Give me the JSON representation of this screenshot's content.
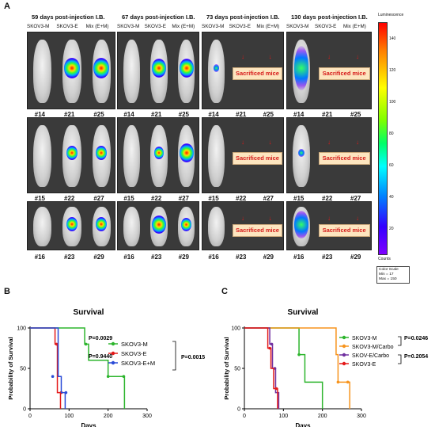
{
  "panel_letters": {
    "a": "A",
    "b": "B",
    "c": "C"
  },
  "groups": [
    {
      "title": "59 days post-injection I.B.",
      "cols": [
        "SKOV3-M",
        "SKOV3-E",
        "Mix (E+M)"
      ]
    },
    {
      "title": "67 days post-injection I.B.",
      "cols": [
        "SKOV3-M",
        "SKOV3-E",
        "Mix (E+M)"
      ]
    },
    {
      "title": "73 days post-injection I.B.",
      "cols": [
        "SKOV3-M",
        "SKOV3-E",
        "Mix (E+M)"
      ]
    },
    {
      "title": "130 days post-injection I.B.",
      "cols": [
        "SKOV3-M",
        "SKOV3-E",
        "Mix (E+M)"
      ]
    }
  ],
  "mouse_ids": [
    [
      "#14",
      "#21",
      "#25"
    ],
    [
      "#15",
      "#22",
      "#27"
    ],
    [
      "#16",
      "#23",
      "#29"
    ]
  ],
  "sacrificed_label": "Sacrificed mice",
  "colorbar": {
    "title": "Luminescence",
    "ticks": [
      "140",
      "120",
      "100",
      "80",
      "60",
      "40",
      "20"
    ],
    "bottom_label": "Counts",
    "scale_lines": [
      "Color Scale",
      "Min = 17",
      "Max = 150"
    ]
  },
  "chart_data": [
    {
      "type": "line",
      "panel": "B",
      "title": "Survival",
      "xlabel": "Days",
      "ylabel": "Probability of Survival",
      "xlim": [
        0,
        300
      ],
      "ylim": [
        0,
        100
      ],
      "xticks": [
        "0",
        "100",
        "200",
        "300"
      ],
      "yticks": [
        "0",
        "50",
        "100"
      ],
      "series": [
        {
          "name": "SKOV3-M",
          "color": "#2db52d",
          "steps": [
            [
              0,
              100
            ],
            [
              140,
              100
            ],
            [
              140,
              80
            ],
            [
              150,
              80
            ],
            [
              150,
              60
            ],
            [
              200,
              60
            ],
            [
              200,
              40
            ],
            [
              242,
              40
            ],
            [
              242,
              0
            ]
          ],
          "censor": [
            [
              143,
              80
            ],
            [
              200,
              40
            ],
            [
              240,
              40
            ]
          ]
        },
        {
          "name": "SKOV3-E",
          "color": "#e41a1a",
          "steps": [
            [
              0,
              100
            ],
            [
              64,
              100
            ],
            [
              64,
              80
            ],
            [
              70,
              80
            ],
            [
              70,
              20
            ],
            [
              78,
              20
            ],
            [
              78,
              0
            ]
          ],
          "censor": [
            [
              68,
              80
            ],
            [
              80,
              20
            ]
          ]
        },
        {
          "name": "SKOV3-E+M",
          "color": "#2a4bd7",
          "steps": [
            [
              0,
              100
            ],
            [
              72,
              100
            ],
            [
              72,
              40
            ],
            [
              80,
              40
            ],
            [
              80,
              20
            ],
            [
              90,
              20
            ],
            [
              90,
              0
            ]
          ],
          "censor": [
            [
              58,
              40
            ],
            [
              92,
              20
            ]
          ]
        }
      ],
      "annotations": [
        "P=0.0029",
        "P=0.9440",
        "P=0.0015"
      ]
    },
    {
      "type": "line",
      "panel": "C",
      "title": "Survival",
      "xlabel": "Days",
      "ylabel": "Probability of Survival",
      "xlim": [
        0,
        300
      ],
      "ylim": [
        0,
        100
      ],
      "xticks": [
        "0",
        "100",
        "200",
        "300"
      ],
      "yticks": [
        "0",
        "50",
        "100"
      ],
      "series": [
        {
          "name": "SKOV3-M",
          "color": "#2db52d",
          "steps": [
            [
              0,
              100
            ],
            [
              140,
              100
            ],
            [
              140,
              67
            ],
            [
              155,
              67
            ],
            [
              155,
              33
            ],
            [
              200,
              33
            ],
            [
              200,
              0
            ]
          ],
          "censor": [
            [
              140,
              67
            ]
          ]
        },
        {
          "name": "SKOV3-M/Carbo",
          "color": "#f7941d",
          "steps": [
            [
              0,
              100
            ],
            [
              235,
              100
            ],
            [
              235,
              67
            ],
            [
              240,
              67
            ],
            [
              240,
              33
            ],
            [
              270,
              33
            ],
            [
              270,
              0
            ]
          ],
          "censor": [
            [
              240,
              33
            ],
            [
              265,
              33
            ]
          ]
        },
        {
          "name": "SKOV-E/Carbo",
          "color": "#7030a0",
          "steps": [
            [
              0,
              100
            ],
            [
              65,
              100
            ],
            [
              65,
              80
            ],
            [
              72,
              80
            ],
            [
              72,
              50
            ],
            [
              80,
              50
            ],
            [
              80,
              20
            ],
            [
              88,
              20
            ],
            [
              88,
              0
            ]
          ],
          "censor": [
            [
              70,
              80
            ],
            [
              78,
              50
            ]
          ]
        },
        {
          "name": "SKOV3-E",
          "color": "#e41a1a",
          "steps": [
            [
              0,
              100
            ],
            [
              60,
              100
            ],
            [
              60,
              75
            ],
            [
              68,
              75
            ],
            [
              68,
              50
            ],
            [
              75,
              50
            ],
            [
              75,
              25
            ],
            [
              85,
              25
            ],
            [
              85,
              0
            ]
          ],
          "censor": [
            [
              65,
              75
            ],
            [
              82,
              25
            ]
          ]
        }
      ],
      "annotations": [
        "P=0.0246",
        "P=0.2054"
      ]
    }
  ]
}
